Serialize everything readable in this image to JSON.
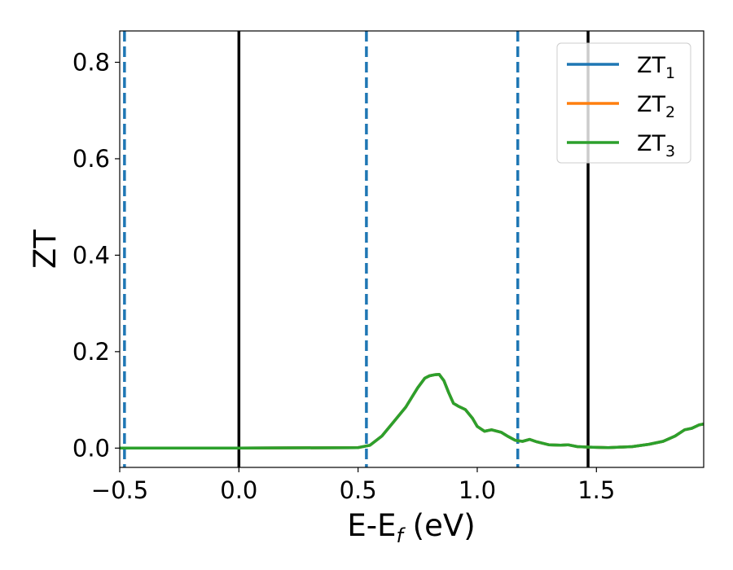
{
  "chart_data": {
    "type": "line",
    "xlabel": "E-E",
    "xlabel_sub": "f",
    "xlabel_unit": " (eV)",
    "ylabel": "ZT",
    "xlim": [
      -0.5,
      1.95
    ],
    "ylim": [
      -0.04,
      0.865
    ],
    "x_ticks": [
      -0.5,
      0.0,
      0.5,
      1.0,
      1.5
    ],
    "x_tick_labels": [
      "−0.5",
      "0.0",
      "0.5",
      "1.0",
      "1.5"
    ],
    "y_ticks": [
      0.0,
      0.2,
      0.4,
      0.6,
      0.8
    ],
    "y_tick_labels": [
      "0.0",
      "0.2",
      "0.4",
      "0.6",
      "0.8"
    ],
    "grid": false,
    "legend_position": "top-right",
    "solid_vlines": [
      0.0,
      1.465
    ],
    "solid_vline_color": "#000000",
    "dashed_vlines": [
      -0.48,
      0.535,
      1.17
    ],
    "dashed_vline_color": "#1f77b4",
    "series": [
      {
        "name": "ZT",
        "name_sub": "1",
        "color": "#1f77b4",
        "x": [
          -0.5,
          0.0,
          0.5,
          0.55,
          0.6,
          0.65,
          0.7,
          0.75,
          0.78,
          0.8,
          0.82,
          0.84,
          0.86,
          0.88,
          0.9,
          0.92,
          0.95,
          0.98,
          1.0,
          1.03,
          1.06,
          1.1,
          1.13,
          1.16,
          1.19,
          1.22,
          1.25,
          1.3,
          1.35,
          1.38,
          1.42,
          1.47,
          1.55,
          1.65,
          1.72,
          1.78,
          1.83,
          1.87,
          1.9,
          1.93,
          1.95
        ],
        "y": [
          0.0,
          0.0,
          0.001,
          0.006,
          0.025,
          0.055,
          0.085,
          0.125,
          0.145,
          0.15,
          0.152,
          0.153,
          0.14,
          0.115,
          0.093,
          0.087,
          0.08,
          0.062,
          0.045,
          0.035,
          0.038,
          0.033,
          0.024,
          0.016,
          0.014,
          0.018,
          0.013,
          0.007,
          0.006,
          0.007,
          0.003,
          0.002,
          0.001,
          0.003,
          0.008,
          0.014,
          0.025,
          0.038,
          0.041,
          0.048,
          0.05
        ]
      },
      {
        "name": "ZT",
        "name_sub": "2",
        "color": "#ff7f0e",
        "x": [
          -0.5,
          0.0,
          0.5,
          0.55,
          0.6,
          0.65,
          0.7,
          0.75,
          0.78,
          0.8,
          0.82,
          0.84,
          0.86,
          0.88,
          0.9,
          0.92,
          0.95,
          0.98,
          1.0,
          1.03,
          1.06,
          1.1,
          1.13,
          1.16,
          1.19,
          1.22,
          1.25,
          1.3,
          1.35,
          1.38,
          1.42,
          1.47,
          1.55,
          1.65,
          1.72,
          1.78,
          1.83,
          1.87,
          1.9,
          1.93,
          1.95
        ],
        "y": [
          0.0,
          0.0,
          0.001,
          0.006,
          0.025,
          0.055,
          0.085,
          0.125,
          0.145,
          0.15,
          0.152,
          0.153,
          0.14,
          0.115,
          0.093,
          0.087,
          0.08,
          0.062,
          0.045,
          0.035,
          0.038,
          0.033,
          0.024,
          0.016,
          0.014,
          0.018,
          0.013,
          0.007,
          0.006,
          0.007,
          0.003,
          0.002,
          0.001,
          0.003,
          0.008,
          0.014,
          0.025,
          0.038,
          0.041,
          0.048,
          0.05
        ]
      },
      {
        "name": "ZT",
        "name_sub": "3",
        "color": "#2ca02c",
        "x": [
          -0.5,
          0.0,
          0.5,
          0.55,
          0.6,
          0.65,
          0.7,
          0.75,
          0.78,
          0.8,
          0.82,
          0.84,
          0.86,
          0.88,
          0.9,
          0.92,
          0.95,
          0.98,
          1.0,
          1.03,
          1.06,
          1.1,
          1.13,
          1.16,
          1.19,
          1.22,
          1.25,
          1.3,
          1.35,
          1.38,
          1.42,
          1.47,
          1.55,
          1.65,
          1.72,
          1.78,
          1.83,
          1.87,
          1.9,
          1.93,
          1.95
        ],
        "y": [
          0.0,
          0.0,
          0.001,
          0.006,
          0.025,
          0.055,
          0.085,
          0.125,
          0.145,
          0.15,
          0.152,
          0.153,
          0.14,
          0.115,
          0.093,
          0.087,
          0.08,
          0.062,
          0.045,
          0.035,
          0.038,
          0.033,
          0.024,
          0.016,
          0.014,
          0.018,
          0.013,
          0.007,
          0.006,
          0.007,
          0.003,
          0.002,
          0.001,
          0.003,
          0.008,
          0.014,
          0.025,
          0.038,
          0.041,
          0.048,
          0.05
        ]
      }
    ]
  }
}
